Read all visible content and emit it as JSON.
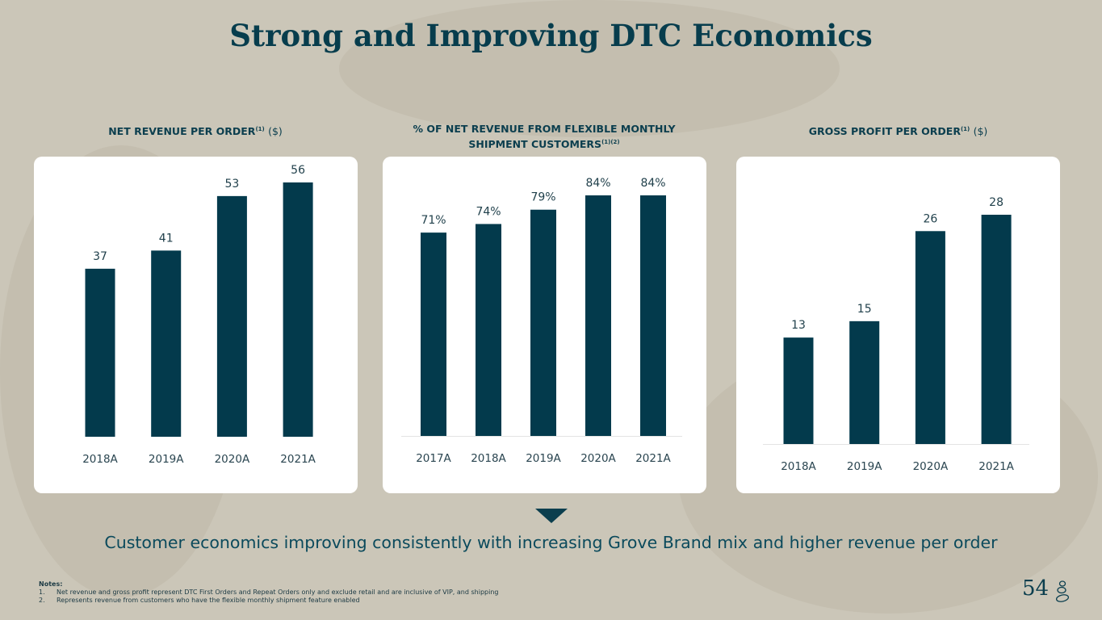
{
  "title": "Strong and Improving DTC Economics",
  "chart_data": [
    {
      "type": "bar",
      "title": "NET REVENUE PER ORDER",
      "title_sup": "(1)",
      "title_unit": "($)",
      "categories": [
        "2018A",
        "2019A",
        "2020A",
        "2021A"
      ],
      "values": [
        37,
        41,
        53,
        56
      ],
      "labels": [
        "37",
        "41",
        "53",
        "56"
      ],
      "ylim": [
        0,
        56
      ],
      "grid": false,
      "color": "#033a4c"
    },
    {
      "type": "bar",
      "title": "% OF NET REVENUE FROM FLEXIBLE MONTHLY SHIPMENT CUSTOMERS",
      "title_sup": "(1)(2)",
      "title_unit": "",
      "categories": [
        "2017A",
        "2018A",
        "2019A",
        "2020A",
        "2021A"
      ],
      "values": [
        71,
        74,
        79,
        84,
        84
      ],
      "labels": [
        "71%",
        "74%",
        "79%",
        "84%",
        "84%"
      ],
      "ylim": [
        0,
        84
      ],
      "grid": false,
      "color": "#033a4c"
    },
    {
      "type": "bar",
      "title": "GROSS PROFIT PER ORDER",
      "title_sup": "(1)",
      "title_unit": "($)",
      "categories": [
        "2018A",
        "2019A",
        "2020A",
        "2021A"
      ],
      "values": [
        13,
        15,
        26,
        28
      ],
      "labels": [
        "13",
        "15",
        "26",
        "28"
      ],
      "ylim": [
        0,
        28
      ],
      "grid": false,
      "color": "#033a4c"
    }
  ],
  "tagline": "Customer economics improving consistently with increasing Grove Brand mix and higher revenue per order",
  "notes": {
    "heading": "Notes:",
    "items": [
      {
        "num": "1.",
        "text": "Net revenue and gross profit represent DTC First Orders and Repeat Orders only and exclude retail and are inclusive of VIP, and shipping"
      },
      {
        "num": "2.",
        "text": "Represents revenue from customers who have the flexible monthly shipment feature enabled"
      }
    ]
  },
  "page_number": "54",
  "logo_text": "Grove"
}
